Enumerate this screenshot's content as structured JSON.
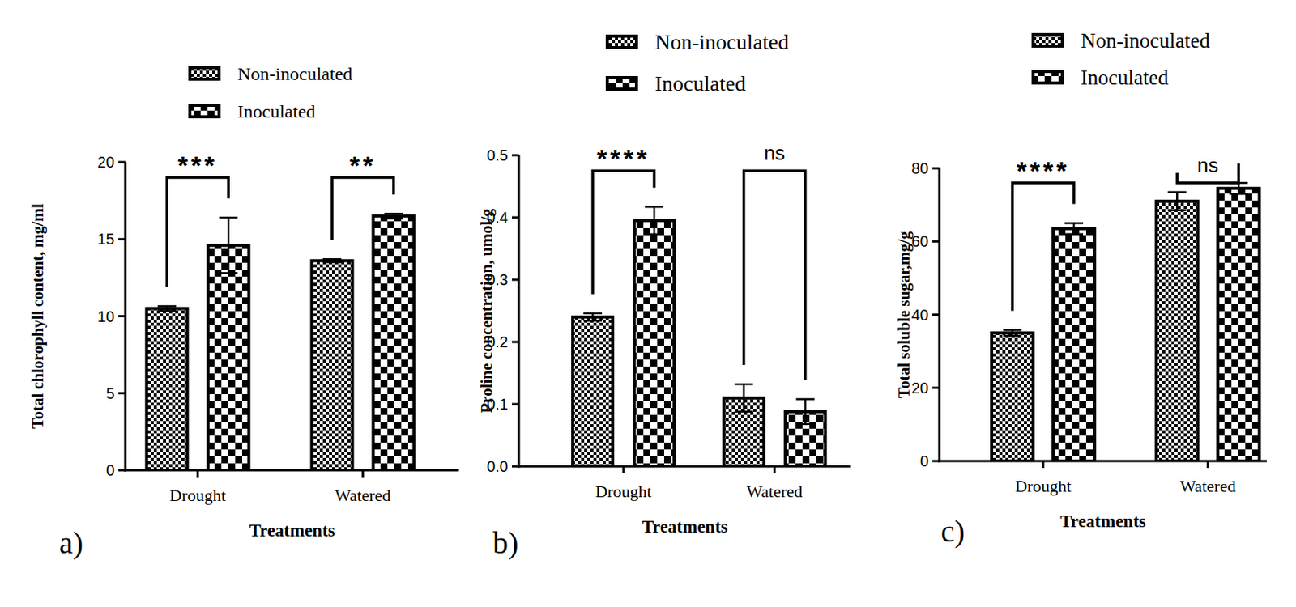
{
  "chart_data": [
    {
      "type": "bar",
      "panel_label": "a)",
      "x_label": "Treatments",
      "y_label": "Total chlorophyll content, mg/ml",
      "categories": [
        "Drought",
        "Watered"
      ],
      "series": [
        {
          "name": "Non-inoculated",
          "color": "#000000",
          "values": [
            10.5,
            13.6
          ],
          "errors": [
            0.15,
            0.1
          ]
        },
        {
          "name": "Inoculated",
          "color": "#000000",
          "values": [
            14.6,
            16.5
          ],
          "errors": [
            1.8,
            0.15
          ]
        }
      ],
      "significance": [
        "***",
        "**"
      ],
      "ylim": [
        0,
        20
      ],
      "yticks": [
        0,
        5,
        10,
        15,
        20
      ],
      "grid": false,
      "legend": "top"
    },
    {
      "type": "bar",
      "panel_label": "b)",
      "x_label": "Treatments",
      "y_label": "Proline concentration, umol/g",
      "categories": [
        "Drought",
        "Watered"
      ],
      "series": [
        {
          "name": "Non-inoculated",
          "color": "#000000",
          "values": [
            0.24,
            0.11
          ],
          "errors": [
            0.006,
            0.022
          ]
        },
        {
          "name": "Inoculated",
          "color": "#000000",
          "values": [
            0.395,
            0.088
          ],
          "errors": [
            0.022,
            0.02
          ]
        }
      ],
      "significance": [
        "****",
        "ns"
      ],
      "ylim": [
        0,
        0.5
      ],
      "yticks": [
        {
          "value": 0,
          "label": "0.0"
        },
        0.1,
        0.2,
        0.3,
        0.4,
        0.5
      ],
      "grid": false,
      "legend": "top"
    },
    {
      "type": "bar",
      "panel_label": "c)",
      "x_label": "Treatments",
      "y_label": "Total soluble sugar,mg/g",
      "categories": [
        "Drought",
        "Watered"
      ],
      "series": [
        {
          "name": "Non-inoculated",
          "color": "#000000",
          "values": [
            35,
            71
          ],
          "errors": [
            0.8,
            2.5
          ]
        },
        {
          "name": "Inoculated",
          "color": "#000000",
          "values": [
            63.5,
            74.5
          ],
          "errors": [
            1.5,
            1.5
          ]
        }
      ],
      "significance": [
        "****",
        "ns"
      ],
      "ylim": [
        0,
        80
      ],
      "yticks": [
        0,
        20,
        40,
        60,
        80
      ],
      "grid": false,
      "legend": "top"
    }
  ]
}
